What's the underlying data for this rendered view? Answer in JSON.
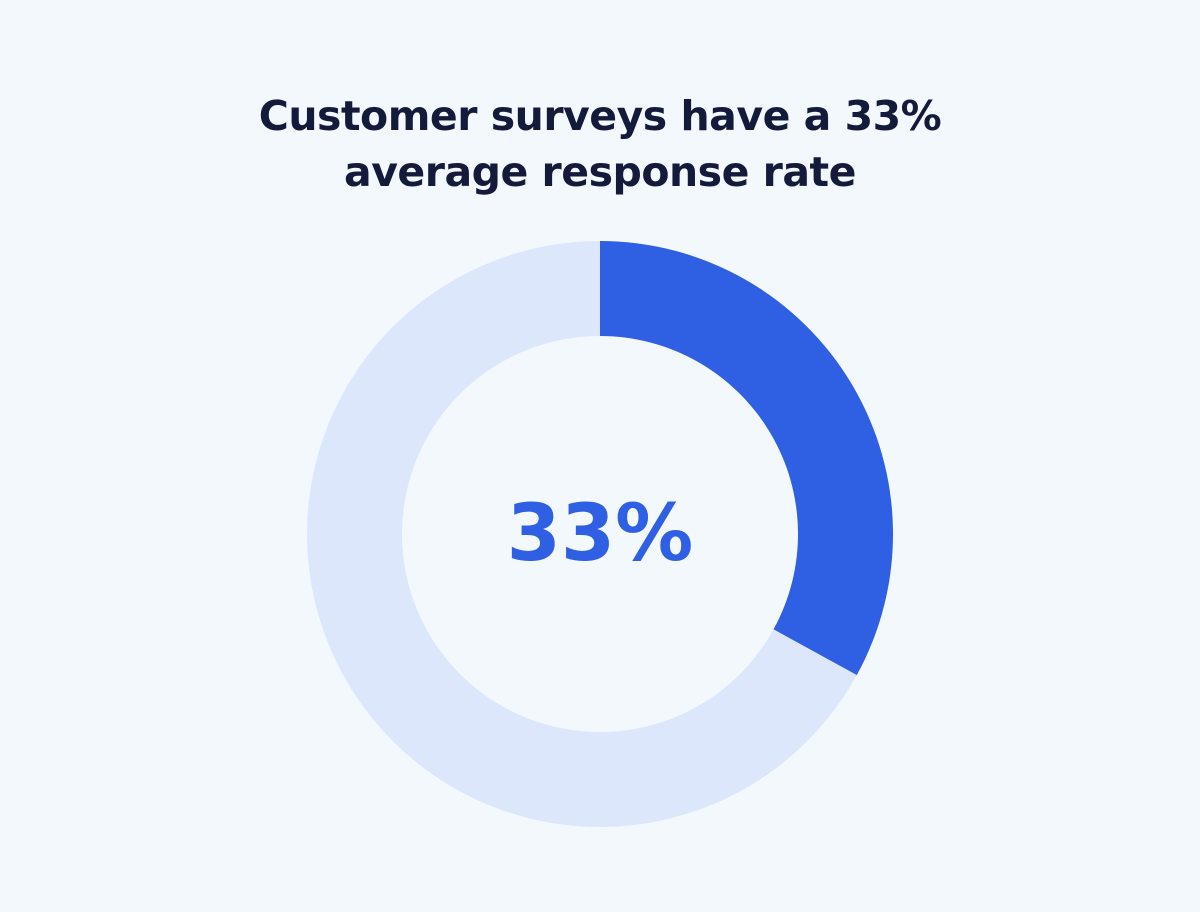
{
  "chart_data": {
    "type": "pie",
    "variant": "donut",
    "title_lines": [
      "Customer surveys have a 33%",
      "average response rate"
    ],
    "center_label": "33%",
    "slices": [
      {
        "value": 33,
        "color": "#2F5FE3"
      },
      {
        "value": 67,
        "color": "#DCE7FB"
      }
    ]
  },
  "background": "#F3F8FD"
}
